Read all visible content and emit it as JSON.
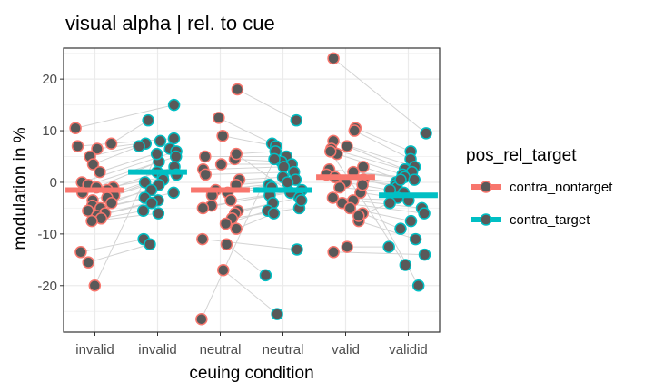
{
  "chart_data": {
    "type": "scatter",
    "title": "visual alpha | rel. to cue",
    "xlabel": "ceuing condition",
    "ylabel": "modulation in %",
    "ylim": [
      -29,
      26
    ],
    "yticks": [
      -20,
      -10,
      0,
      10,
      20
    ],
    "grid": true,
    "categories": [
      "invalid",
      "invalid",
      "neutral",
      "neutral",
      "valid",
      "validid"
    ],
    "legend": {
      "title": "pos_rel_target",
      "position": "right",
      "entries": [
        {
          "label": "contra_nontarget",
          "color": "#F8766D"
        },
        {
          "label": "contra_target",
          "color": "#00BFC4"
        }
      ]
    },
    "point_fill": "#595959",
    "line_color": "#d3d3d3",
    "series": [
      {
        "name": "contra_nontarget",
        "color": "#F8766D",
        "category_index": 0,
        "mean": -1.5,
        "values": [
          10.5,
          7.5,
          7.0,
          6.5,
          5.0,
          3.5,
          2.0,
          0.0,
          -0.5,
          -1.0,
          -1.0,
          -1.5,
          -2.0,
          -2.5,
          -3.0,
          -3.5,
          -4.0,
          -4.5,
          -5.0,
          -5.5,
          -6.0,
          -6.5,
          -7.0,
          -7.5,
          -13.5,
          -15.5,
          -20.0
        ]
      },
      {
        "name": "contra_target",
        "color": "#00BFC4",
        "category_index": 1,
        "mean": 2.0,
        "values": [
          15.0,
          12.0,
          8.5,
          8.0,
          7.5,
          7.0,
          6.5,
          6.0,
          5.0,
          4.0,
          3.0,
          2.0,
          1.5,
          1.0,
          0.5,
          0.0,
          -0.5,
          -1.5,
          -2.0,
          -3.0,
          -3.5,
          -4.0,
          -5.5,
          -6.0,
          -11.0,
          -12.0,
          5.5
        ]
      },
      {
        "name": "contra_nontarget",
        "color": "#F8766D",
        "category_index": 2,
        "mean": -1.5,
        "values": [
          18.0,
          12.5,
          9.0,
          5.5,
          5.0,
          4.5,
          3.5,
          2.5,
          1.5,
          0.5,
          -0.5,
          -1.5,
          -2.0,
          -2.5,
          -3.5,
          -4.5,
          -5.0,
          -5.5,
          -6.0,
          -7.0,
          -8.0,
          -9.0,
          -11.0,
          -12.0,
          -17.0,
          -26.5,
          5.5
        ]
      },
      {
        "name": "contra_target",
        "color": "#00BFC4",
        "category_index": 3,
        "mean": -1.5,
        "values": [
          12.0,
          7.5,
          7.0,
          6.0,
          5.0,
          4.0,
          3.5,
          3.0,
          2.0,
          1.0,
          0.5,
          0.0,
          -0.5,
          -1.0,
          -1.5,
          -2.0,
          -2.5,
          -3.0,
          -4.0,
          -5.0,
          -5.5,
          -6.0,
          -13.0,
          -18.0,
          -25.5,
          4.5,
          -3.5
        ]
      },
      {
        "name": "contra_nontarget",
        "color": "#F8766D",
        "category_index": 4,
        "mean": 1.0,
        "values": [
          24.0,
          10.5,
          10.0,
          8.0,
          7.0,
          6.5,
          5.5,
          2.5,
          2.0,
          1.5,
          1.0,
          0.5,
          0.0,
          -1.0,
          -2.0,
          -3.0,
          -3.5,
          -4.0,
          -5.0,
          -6.0,
          -7.5,
          -12.5,
          -13.5,
          6.0,
          -0.5,
          3.0,
          -6.5
        ]
      },
      {
        "name": "contra_target",
        "color": "#00BFC4",
        "category_index": 5,
        "mean": -2.5,
        "values": [
          9.5,
          6.0,
          4.5,
          3.0,
          2.5,
          2.0,
          1.5,
          1.0,
          0.5,
          0.0,
          -0.5,
          -1.0,
          -1.5,
          -2.0,
          -3.0,
          -3.5,
          -5.0,
          -6.0,
          -7.5,
          -9.0,
          -11.0,
          -12.5,
          -14.0,
          -16.0,
          -20.0,
          0.5,
          -4.0
        ]
      }
    ]
  }
}
